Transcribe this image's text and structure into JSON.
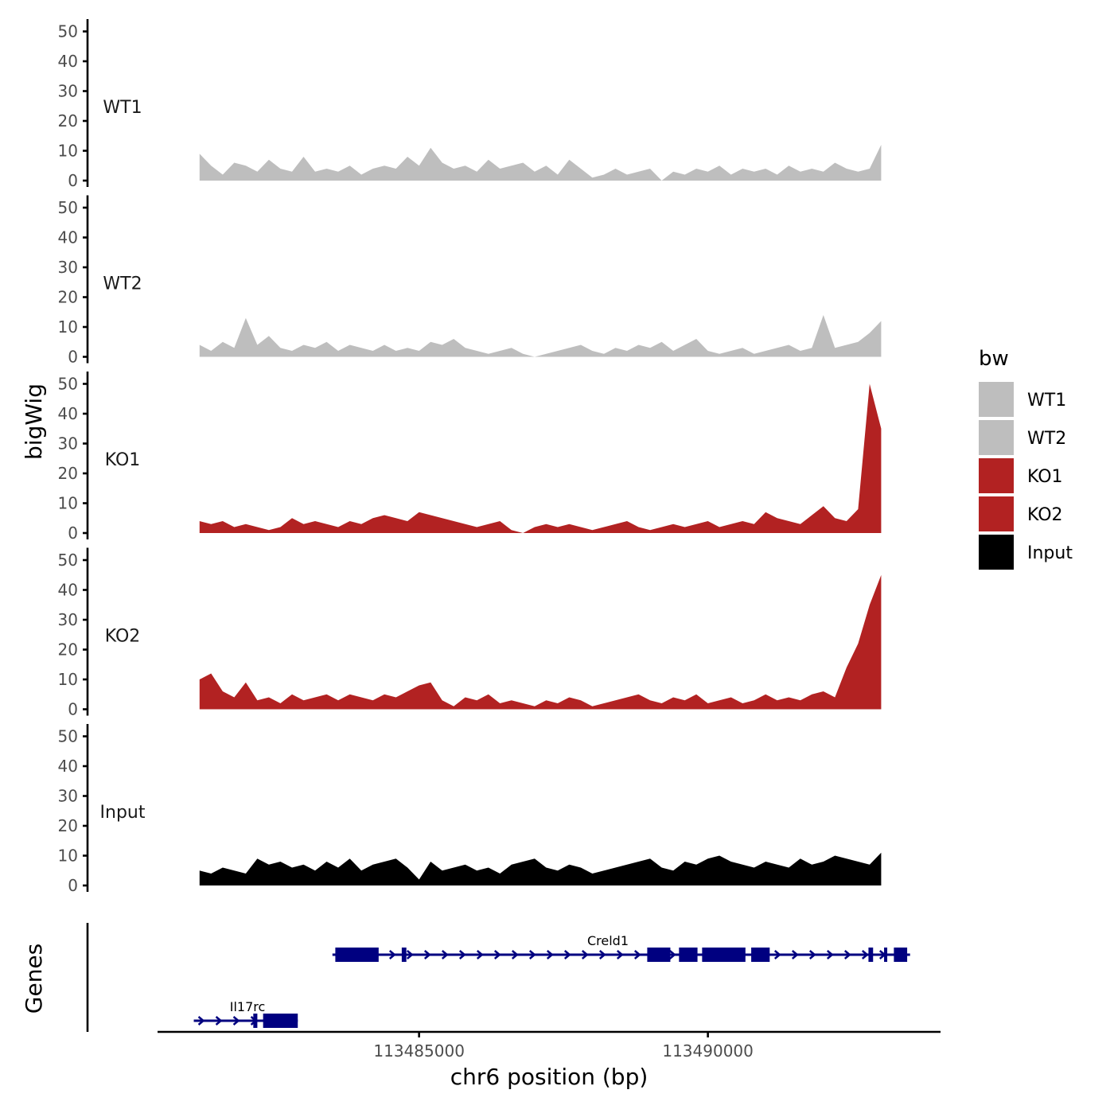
{
  "chart_data": {
    "type": "area",
    "title": "",
    "xlabel": "chr6 position (bp)",
    "ylabel": "bigWig",
    "gene_panel_label": "Genes",
    "xlim": [
      113480500,
      113494000
    ],
    "x_ticks": [
      113485000,
      113490000
    ],
    "x_tick_labels": [
      "113485000",
      "113490000"
    ],
    "ylim": [
      0,
      52
    ],
    "y_ticks": [
      0,
      10,
      20,
      30,
      40,
      50
    ],
    "y_tick_labels": [
      "0",
      "10",
      "20",
      "30",
      "40",
      "50"
    ],
    "legend": {
      "title": "bw",
      "position": "right",
      "entries": [
        {
          "label": "WT1",
          "color": "#bebebe"
        },
        {
          "label": "WT2",
          "color": "#bebebe"
        },
        {
          "label": "KO1",
          "color": "#b22222"
        },
        {
          "label": "KO2",
          "color": "#b22222"
        },
        {
          "label": "Input",
          "color": "#000000"
        }
      ]
    },
    "x": [
      113481200,
      113481400,
      113481600,
      113481800,
      113482000,
      113482200,
      113482400,
      113482600,
      113482800,
      113483000,
      113483200,
      113483400,
      113483600,
      113483800,
      113484000,
      113484200,
      113484400,
      113484600,
      113484800,
      113485000,
      113485200,
      113485400,
      113485600,
      113485800,
      113486000,
      113486200,
      113486400,
      113486600,
      113486800,
      113487000,
      113487200,
      113487400,
      113487600,
      113487800,
      113488000,
      113488200,
      113488400,
      113488600,
      113488800,
      113489000,
      113489200,
      113489400,
      113489600,
      113489800,
      113490000,
      113490200,
      113490400,
      113490600,
      113490800,
      113491000,
      113491200,
      113491400,
      113491600,
      113491800,
      113492000,
      113492200,
      113492400,
      113492600,
      113492800,
      113493000
    ],
    "series": [
      {
        "name": "WT1",
        "color": "#bebebe",
        "values": [
          9,
          5,
          2,
          6,
          5,
          3,
          7,
          4,
          3,
          8,
          3,
          4,
          3,
          5,
          2,
          4,
          5,
          4,
          8,
          5,
          11,
          6,
          4,
          5,
          3,
          7,
          4,
          5,
          6,
          3,
          5,
          2,
          7,
          4,
          1,
          2,
          4,
          2,
          3,
          4,
          0,
          3,
          2,
          4,
          3,
          5,
          2,
          4,
          3,
          4,
          2,
          5,
          3,
          4,
          3,
          6,
          4,
          3,
          4,
          12
        ]
      },
      {
        "name": "WT2",
        "color": "#bebebe",
        "values": [
          4,
          2,
          5,
          3,
          13,
          4,
          7,
          3,
          2,
          4,
          3,
          5,
          2,
          4,
          3,
          2,
          4,
          2,
          3,
          2,
          5,
          4,
          6,
          3,
          2,
          1,
          2,
          3,
          1,
          0,
          1,
          2,
          3,
          4,
          2,
          1,
          3,
          2,
          4,
          3,
          5,
          2,
          4,
          6,
          2,
          1,
          2,
          3,
          1,
          2,
          3,
          4,
          2,
          3,
          14,
          3,
          4,
          5,
          8,
          12
        ]
      },
      {
        "name": "KO1",
        "color": "#b22222",
        "values": [
          4,
          3,
          4,
          2,
          3,
          2,
          1,
          2,
          5,
          3,
          4,
          3,
          2,
          4,
          3,
          5,
          6,
          5,
          4,
          7,
          6,
          5,
          4,
          3,
          2,
          3,
          4,
          1,
          0,
          2,
          3,
          2,
          3,
          2,
          1,
          2,
          3,
          4,
          2,
          1,
          2,
          3,
          2,
          3,
          4,
          2,
          3,
          4,
          3,
          7,
          5,
          4,
          3,
          6,
          9,
          5,
          4,
          8,
          50,
          35
        ]
      },
      {
        "name": "KO2",
        "color": "#b22222",
        "values": [
          10,
          12,
          6,
          4,
          9,
          3,
          4,
          2,
          5,
          3,
          4,
          5,
          3,
          5,
          4,
          3,
          5,
          4,
          6,
          8,
          9,
          3,
          1,
          4,
          3,
          5,
          2,
          3,
          2,
          1,
          3,
          2,
          4,
          3,
          1,
          2,
          3,
          4,
          5,
          3,
          2,
          4,
          3,
          5,
          2,
          3,
          4,
          2,
          3,
          5,
          3,
          4,
          3,
          5,
          6,
          4,
          14,
          22,
          35,
          45
        ]
      },
      {
        "name": "Input",
        "color": "#000000",
        "values": [
          5,
          4,
          6,
          5,
          4,
          9,
          7,
          8,
          6,
          7,
          5,
          8,
          6,
          9,
          5,
          7,
          8,
          9,
          6,
          2,
          8,
          5,
          6,
          7,
          5,
          6,
          4,
          7,
          8,
          9,
          6,
          5,
          7,
          6,
          4,
          5,
          6,
          7,
          8,
          9,
          6,
          5,
          8,
          7,
          9,
          10,
          8,
          7,
          6,
          8,
          7,
          6,
          9,
          7,
          8,
          10,
          9,
          8,
          7,
          11
        ]
      }
    ],
    "genes": [
      {
        "name": "Creld1",
        "strand": "+",
        "start": 113483500,
        "end": 113493500,
        "exons": [
          [
            113483550,
            113484300
          ],
          [
            113484700,
            113484780
          ],
          [
            113488950,
            113489350
          ],
          [
            113489500,
            113489820
          ],
          [
            113489900,
            113490650
          ],
          [
            113490750,
            113491070
          ],
          [
            113492780,
            113492860
          ],
          [
            113493050,
            113493100
          ],
          [
            113493220,
            113493450
          ]
        ]
      },
      {
        "name": "Il17rc",
        "strand": "+",
        "start": 113481100,
        "end": 113482900,
        "exons": [
          [
            113482130,
            113482200
          ],
          [
            113482300,
            113482900
          ]
        ]
      }
    ]
  }
}
